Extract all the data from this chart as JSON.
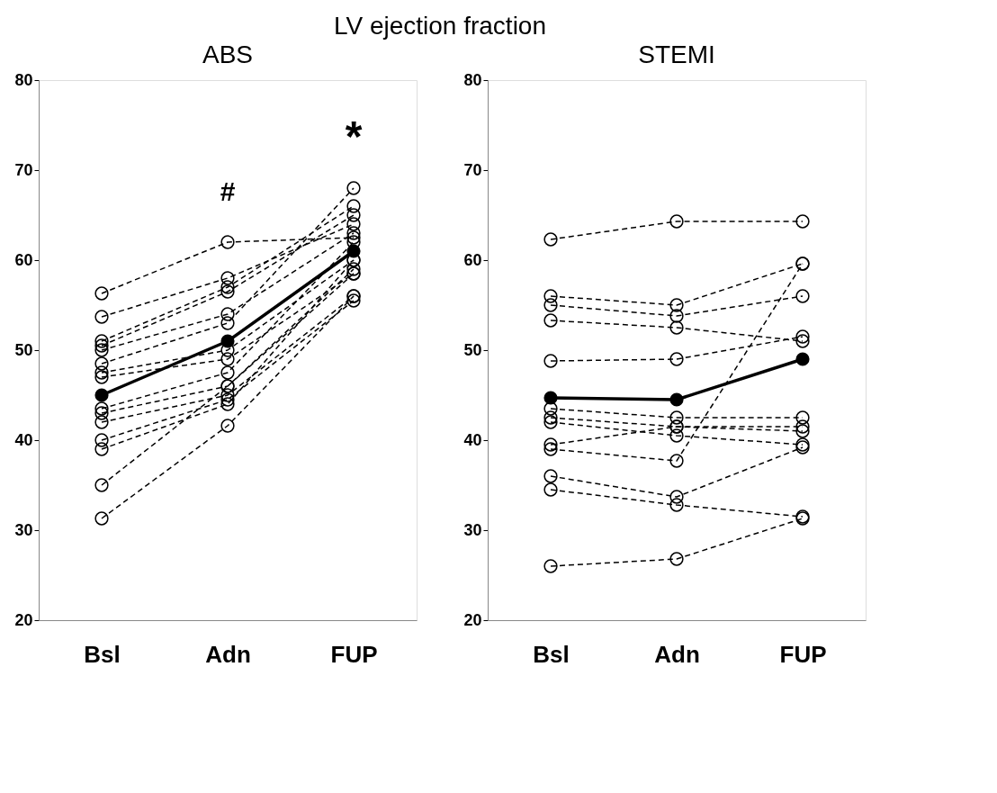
{
  "chart_data": [
    {
      "type": "line",
      "title": "LV ejection fraction",
      "subtitle": "ABS",
      "categories": [
        "Bsl",
        "Adn",
        "FUP"
      ],
      "ylim": [
        20,
        80
      ],
      "yticks": [
        20,
        30,
        40,
        50,
        60,
        70,
        80
      ],
      "grid": false,
      "marker": "circle",
      "annotations": [
        "#",
        "*"
      ],
      "series": [
        {
          "color": "#000000",
          "line_style": "dashed",
          "values": [
            56.3,
            62,
            62.5
          ]
        },
        {
          "color": "#000000",
          "line_style": "dashed",
          "values": [
            53.7,
            58,
            64
          ]
        },
        {
          "color": "#000000",
          "line_style": "dashed",
          "values": [
            51,
            57,
            66
          ]
        },
        {
          "color": "#000000",
          "line_style": "dashed",
          "values": [
            50.5,
            56.5,
            65
          ]
        },
        {
          "color": "#000000",
          "line_style": "dashed",
          "values": [
            50,
            54,
            63
          ]
        },
        {
          "color": "#000000",
          "line_style": "dashed",
          "values": [
            48.5,
            53,
            68
          ]
        },
        {
          "color": "#000000",
          "line_style": "dashed",
          "values": [
            47.5,
            50,
            60
          ]
        },
        {
          "color": "#000000",
          "line_style": "dashed",
          "values": [
            47,
            49,
            58.5
          ]
        },
        {
          "color": "#000000",
          "line_style": "dashed",
          "values": [
            43.5,
            47.5,
            62
          ]
        },
        {
          "color": "#000000",
          "line_style": "dashed",
          "values": [
            43,
            46,
            59
          ]
        },
        {
          "color": "#000000",
          "line_style": "dashed",
          "values": [
            42,
            45,
            56
          ]
        },
        {
          "color": "#000000",
          "line_style": "dashed",
          "values": [
            40,
            44.5,
            55.5
          ]
        },
        {
          "color": "#000000",
          "line_style": "dashed",
          "values": [
            39,
            44,
            60
          ]
        },
        {
          "color": "#000000",
          "line_style": "dashed",
          "values": [
            35,
            46,
            58.5
          ]
        },
        {
          "color": "#000000",
          "line_style": "dashed",
          "values": [
            31.3,
            41.6,
            56
          ]
        },
        {
          "color": "#000000",
          "line_style": "solid",
          "values": [
            45,
            51,
            61
          ]
        }
      ]
    },
    {
      "type": "line",
      "subtitle": "STEMI",
      "categories": [
        "Bsl",
        "Adn",
        "FUP"
      ],
      "ylim": [
        20,
        80
      ],
      "yticks": [
        20,
        30,
        40,
        50,
        60,
        70,
        80
      ],
      "grid": false,
      "marker": "circle",
      "series": [
        {
          "color": "#000000",
          "line_style": "dashed",
          "values": [
            62.3,
            64.3,
            64.3
          ]
        },
        {
          "color": "#000000",
          "line_style": "dashed",
          "values": [
            56,
            55,
            59.6
          ]
        },
        {
          "color": "#000000",
          "line_style": "dashed",
          "values": [
            55,
            53.8,
            56
          ]
        },
        {
          "color": "#000000",
          "line_style": "dashed",
          "values": [
            53.3,
            52.5,
            51
          ]
        },
        {
          "color": "#000000",
          "line_style": "dashed",
          "values": [
            48.8,
            49,
            51.5
          ]
        },
        {
          "color": "#000000",
          "line_style": "dashed",
          "values": [
            43.5,
            42.5,
            42.5
          ]
        },
        {
          "color": "#000000",
          "line_style": "dashed",
          "values": [
            42.5,
            41.5,
            41.5
          ]
        },
        {
          "color": "#000000",
          "line_style": "dashed",
          "values": [
            42,
            40.5,
            39.5
          ]
        },
        {
          "color": "#000000",
          "line_style": "dashed",
          "values": [
            39.5,
            41.5,
            41
          ]
        },
        {
          "color": "#000000",
          "line_style": "dashed",
          "values": [
            39,
            37.7,
            59.6
          ]
        },
        {
          "color": "#000000",
          "line_style": "dashed",
          "values": [
            36,
            33.7,
            39.2
          ]
        },
        {
          "color": "#000000",
          "line_style": "dashed",
          "values": [
            34.5,
            32.8,
            31.5
          ]
        },
        {
          "color": "#000000",
          "line_style": "dashed",
          "values": [
            26,
            26.8,
            31.3
          ]
        },
        {
          "color": "#000000",
          "line_style": "solid",
          "values": [
            44.7,
            44.5,
            49
          ]
        }
      ]
    }
  ]
}
